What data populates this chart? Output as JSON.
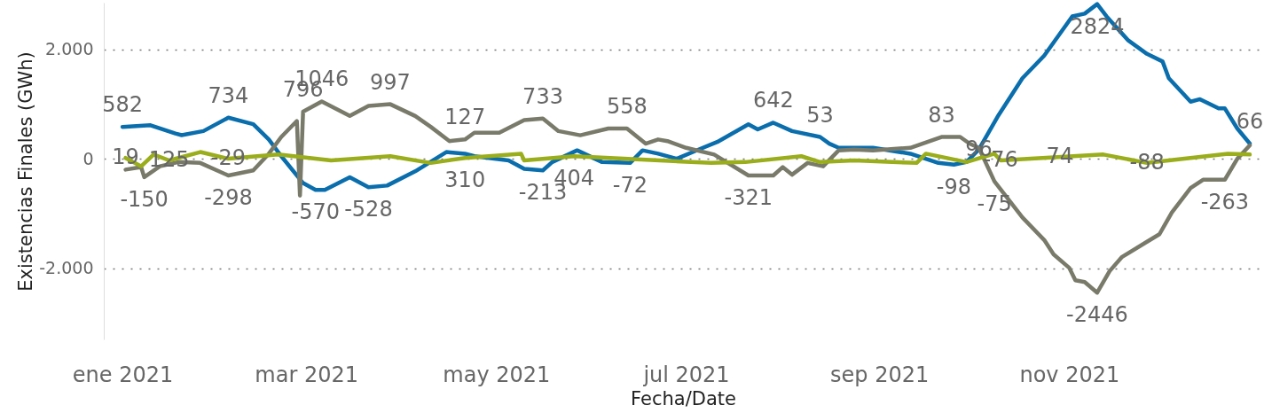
{
  "chart_data": {
    "type": "line",
    "xlabel": "Fecha/Date",
    "ylabel": "Existencias Finales (GWh)",
    "xlim": [
      "2020-12-26",
      "2022-01-02"
    ],
    "ylim": [
      -3300,
      2850
    ],
    "xticks": [
      {
        "value": "2021-01-01",
        "label": "ene 2021"
      },
      {
        "value": "2021-03-01",
        "label": "mar 2021"
      },
      {
        "value": "2021-05-01",
        "label": "may 2021"
      },
      {
        "value": "2021-07-01",
        "label": "jul 2021"
      },
      {
        "value": "2021-09-01",
        "label": "sep 2021"
      },
      {
        "value": "2021-11-01",
        "label": "nov 2021"
      }
    ],
    "yticks": [
      {
        "value": -2000,
        "label": "-2.000"
      },
      0,
      {
        "value": 2000,
        "label": "2.000"
      }
    ],
    "grid": "y",
    "legend": false,
    "line_style": "solid",
    "marker": "none",
    "series": [
      {
        "color": "#0a6ead",
        "x": [
          "2021-01-01",
          "2021-01-10",
          "2021-01-18",
          "2021-01-20",
          "2021-01-27",
          "2021-02-04",
          "2021-02-12",
          "2021-02-17",
          "2021-02-21",
          "2021-02-28",
          "2021-03-04",
          "2021-03-07",
          "2021-03-15",
          "2021-03-21",
          "2021-03-27",
          "2021-04-05",
          "2021-04-15",
          "2021-04-21",
          "2021-04-24",
          "2021-05-05",
          "2021-05-10",
          "2021-05-16",
          "2021-05-19",
          "2021-05-27",
          "2021-06-04",
          "2021-06-13",
          "2021-06-17",
          "2021-06-22",
          "2021-06-28",
          "2021-07-05",
          "2021-07-11",
          "2021-07-21",
          "2021-07-24",
          "2021-07-29",
          "2021-08-04",
          "2021-08-13",
          "2021-08-16",
          "2021-08-19",
          "2021-08-30",
          "2021-09-11",
          "2021-09-20",
          "2021-09-25",
          "2021-09-29",
          "2021-10-03",
          "2021-10-09",
          "2021-10-17",
          "2021-10-24",
          "2021-11-02",
          "2021-11-06",
          "2021-11-10",
          "2021-11-13",
          "2021-11-20",
          "2021-11-26",
          "2021-12-01",
          "2021-12-03",
          "2021-12-10",
          "2021-12-13",
          "2021-12-19",
          "2021-12-21",
          "2021-12-25",
          "2021-12-29"
        ],
        "values": [
          582,
          612,
          460,
          430,
          505,
          750,
          630,
          350,
          46,
          -445,
          -570,
          -570,
          -337,
          -520,
          -490,
          -230,
          122,
          92,
          46,
          -30,
          -184,
          -213,
          -61,
          153,
          -61,
          -77,
          153,
          92,
          0,
          168,
          306,
          628,
          536,
          658,
          505,
          398,
          275,
          199,
          199,
          92,
          -77,
          -107,
          -61,
          168,
          766,
          1470,
          1884,
          2600,
          2650,
          2824,
          2600,
          2160,
          1914,
          1776,
          1470,
          1041,
          1087,
          919,
          919,
          551,
          276
        ]
      },
      {
        "color": "#7a7a6a",
        "x": [
          "2021-01-02",
          "2021-01-07",
          "2021-01-08",
          "2021-01-13",
          "2021-01-19",
          "2021-01-26",
          "2021-02-04",
          "2021-02-12",
          "2021-02-17",
          "2021-02-21",
          "2021-02-26",
          "2021-02-27",
          "2021-02-28",
          "2021-03-06",
          "2021-03-15",
          "2021-03-21",
          "2021-03-28",
          "2021-04-05",
          "2021-04-10",
          "2021-04-16",
          "2021-04-21",
          "2021-04-24",
          "2021-05-02",
          "2021-05-10",
          "2021-05-16",
          "2021-05-21",
          "2021-05-28",
          "2021-06-06",
          "2021-06-12",
          "2021-06-18",
          "2021-06-22",
          "2021-06-25",
          "2021-07-01",
          "2021-07-10",
          "2021-07-21",
          "2021-07-29",
          "2021-08-01",
          "2021-08-04",
          "2021-08-09",
          "2021-08-14",
          "2021-08-19",
          "2021-08-24",
          "2021-08-30",
          "2021-09-11",
          "2021-09-21",
          "2021-09-27",
          "2021-09-30",
          "2021-10-03",
          "2021-10-08",
          "2021-10-17",
          "2021-10-24",
          "2021-10-27",
          "2021-11-01",
          "2021-11-03",
          "2021-11-06",
          "2021-11-10",
          "2021-11-14",
          "2021-11-18",
          "2021-11-26",
          "2021-11-30",
          "2021-12-04",
          "2021-12-10",
          "2021-12-14",
          "2021-12-21",
          "2021-12-25",
          "2021-12-29"
        ],
        "values": [
          -199,
          -153,
          -337,
          -138,
          -61,
          -77,
          -306,
          -214,
          92,
          398,
          689,
          -674,
          858,
          1046,
          781,
          965,
          995,
          781,
          582,
          322,
          352,
          475,
          475,
          704,
          735,
          505,
          429,
          551,
          551,
          276,
          352,
          322,
          199,
          77,
          -306,
          -306,
          -153,
          -291,
          -77,
          -138,
          153,
          168,
          153,
          199,
          398,
          398,
          276,
          199,
          -413,
          -1072,
          -1485,
          -1746,
          -1991,
          -2220,
          -2251,
          -2446,
          -2052,
          -1792,
          -1516,
          -1378,
          -980,
          -536,
          -383,
          -383,
          0,
          245
        ]
      },
      {
        "color": "#9aad1a",
        "x": [
          "2021-01-02",
          "2021-01-07",
          "2021-01-11",
          "2021-01-16",
          "2021-01-26",
          "2021-02-04",
          "2021-02-20",
          "2021-03-09",
          "2021-03-28",
          "2021-04-10",
          "2021-04-21",
          "2021-05-09",
          "2021-05-10",
          "2021-05-26",
          "2021-07-09",
          "2021-07-20",
          "2021-08-07",
          "2021-08-13",
          "2021-08-24",
          "2021-09-13",
          "2021-09-16",
          "2021-09-29",
          "2021-10-08",
          "2021-10-10",
          "2021-11-12",
          "2021-11-26",
          "2021-12-22",
          "2021-12-29"
        ],
        "values": [
          15,
          -138,
          77,
          -31,
          122,
          0,
          77,
          -31,
          46,
          -77,
          15,
          92,
          -31,
          46,
          -77,
          -61,
          46,
          -61,
          -31,
          -77,
          92,
          -61,
          92,
          -31,
          77,
          -77,
          92,
          77
        ]
      }
    ],
    "annotations": [
      {
        "text": "582",
        "x": "2021-01-01",
        "y": 582
      },
      {
        "text": "19",
        "x": "2021-01-02",
        "y": 15
      },
      {
        "text": "125",
        "x": "2021-01-16",
        "y": -31
      },
      {
        "text": "734",
        "x": "2021-02-04",
        "y": 750
      },
      {
        "text": "-29",
        "x": "2021-02-04",
        "y": 0
      },
      {
        "text": "-150",
        "x": "2021-01-08",
        "y": -337
      },
      {
        "text": "-298",
        "x": "2021-02-04",
        "y": -306
      },
      {
        "text": "796",
        "x": "2021-02-28",
        "y": 858
      },
      {
        "text": "1046",
        "x": "2021-03-06",
        "y": 1046
      },
      {
        "text": "997",
        "x": "2021-03-28",
        "y": 995
      },
      {
        "text": "-528",
        "x": "2021-03-21",
        "y": -520
      },
      {
        "text": "-570",
        "x": "2021-03-04",
        "y": -570
      },
      {
        "text": "127",
        "x": "2021-04-21",
        "y": 352
      },
      {
        "text": "310",
        "x": "2021-04-21",
        "y": 15
      },
      {
        "text": "733",
        "x": "2021-05-16",
        "y": 735
      },
      {
        "text": "404",
        "x": "2021-05-26",
        "y": 46
      },
      {
        "text": "-213",
        "x": "2021-05-16",
        "y": -213
      },
      {
        "text": "558",
        "x": "2021-06-12",
        "y": 551
      },
      {
        "text": "-72",
        "x": "2021-06-13",
        "y": -77
      },
      {
        "text": "642",
        "x": "2021-07-29",
        "y": 658
      },
      {
        "text": "53",
        "x": "2021-08-13",
        "y": 398
      },
      {
        "text": "-321",
        "x": "2021-07-21",
        "y": -306
      },
      {
        "text": "83",
        "x": "2021-09-21",
        "y": 398
      },
      {
        "text": "96",
        "x": "2021-10-03",
        "y": 168
      },
      {
        "text": "-76",
        "x": "2021-10-10",
        "y": -31
      },
      {
        "text": "-75",
        "x": "2021-10-08",
        "y": -413
      },
      {
        "text": "74",
        "x": "2021-10-29",
        "y": 31
      },
      {
        "text": "-98",
        "x": "2021-09-25",
        "y": -107
      },
      {
        "text": "2824",
        "x": "2021-11-10",
        "y": 2824
      },
      {
        "text": "-2446",
        "x": "2021-11-10",
        "y": -2446
      },
      {
        "text": "-88",
        "x": "2021-11-26",
        "y": -77
      },
      {
        "text": "66",
        "x": "2021-12-29",
        "y": 276
      },
      {
        "text": "-263",
        "x": "2021-12-21",
        "y": -383
      }
    ]
  }
}
